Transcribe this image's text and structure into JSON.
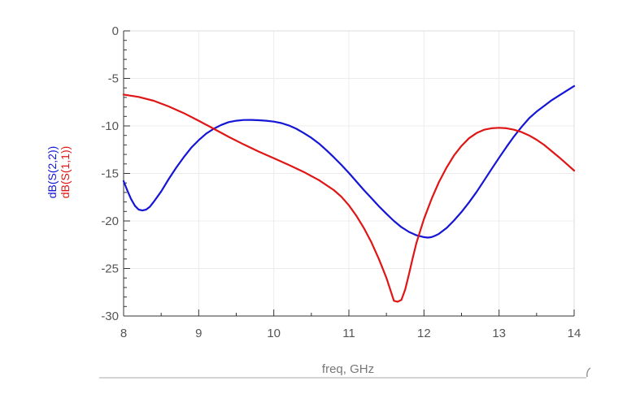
{
  "chart_data": {
    "type": "line",
    "title": "",
    "xlabel": "freq, GHz",
    "ylabel": "",
    "xlim": [
      8,
      14
    ],
    "ylim": [
      -30,
      0
    ],
    "x_ticks": [
      8,
      9,
      10,
      11,
      12,
      13,
      14
    ],
    "x_tick_labels": [
      "8",
      "9",
      "10",
      "11",
      "12",
      "13",
      "14"
    ],
    "y_ticks": [
      0,
      -5,
      -10,
      -15,
      -20,
      -25,
      -30
    ],
    "y_tick_labels": [
      "0",
      "-5",
      "-10",
      "-15",
      "-20",
      "-25",
      "-30"
    ],
    "x_minor_step": 0.5,
    "y_minor_step": 1,
    "grid": true,
    "legend": "vertical labels left of y-axis",
    "series": [
      {
        "name": "dB(S(2,2))",
        "color": "#1515d6",
        "x": [
          8.0,
          8.05,
          8.1,
          8.15,
          8.2,
          8.25,
          8.3,
          8.35,
          8.4,
          8.5,
          8.6,
          8.7,
          8.8,
          8.9,
          9.0,
          9.1,
          9.2,
          9.3,
          9.4,
          9.5,
          9.6,
          9.7,
          9.8,
          9.9,
          10.0,
          10.1,
          10.2,
          10.3,
          10.4,
          10.5,
          10.6,
          10.7,
          10.8,
          10.9,
          11.0,
          11.1,
          11.2,
          11.3,
          11.4,
          11.5,
          11.6,
          11.7,
          11.8,
          11.9,
          12.0,
          12.05,
          12.1,
          12.15,
          12.2,
          12.3,
          12.4,
          12.5,
          12.6,
          12.7,
          12.8,
          12.9,
          13.0,
          13.1,
          13.2,
          13.3,
          13.4,
          13.5,
          13.6,
          13.7,
          13.8,
          13.9,
          14.0
        ],
        "y": [
          -15.8,
          -16.8,
          -17.7,
          -18.4,
          -18.8,
          -18.9,
          -18.8,
          -18.5,
          -18.0,
          -16.9,
          -15.6,
          -14.4,
          -13.3,
          -12.3,
          -11.5,
          -10.8,
          -10.3,
          -9.9,
          -9.6,
          -9.45,
          -9.38,
          -9.37,
          -9.4,
          -9.45,
          -9.55,
          -9.7,
          -9.95,
          -10.3,
          -10.75,
          -11.25,
          -11.85,
          -12.55,
          -13.3,
          -14.1,
          -14.95,
          -15.85,
          -16.75,
          -17.6,
          -18.45,
          -19.25,
          -20.0,
          -20.65,
          -21.15,
          -21.5,
          -21.7,
          -21.75,
          -21.7,
          -21.55,
          -21.35,
          -20.75,
          -19.95,
          -19.05,
          -18.05,
          -16.95,
          -15.75,
          -14.55,
          -13.35,
          -12.2,
          -11.1,
          -10.1,
          -9.2,
          -8.5,
          -7.9,
          -7.3,
          -6.8,
          -6.3,
          -5.8
        ]
      },
      {
        "name": "dB(S(1,1))",
        "color": "#e01515",
        "x": [
          8.0,
          8.2,
          8.4,
          8.6,
          8.8,
          9.0,
          9.2,
          9.4,
          9.6,
          9.8,
          10.0,
          10.2,
          10.4,
          10.6,
          10.8,
          10.9,
          11.0,
          11.1,
          11.2,
          11.3,
          11.4,
          11.5,
          11.55,
          11.6,
          11.65,
          11.7,
          11.75,
          11.8,
          11.85,
          11.9,
          12.0,
          12.1,
          12.2,
          12.3,
          12.4,
          12.5,
          12.6,
          12.7,
          12.8,
          12.9,
          13.0,
          13.1,
          13.2,
          13.3,
          13.4,
          13.5,
          13.6,
          13.7,
          13.8,
          13.9,
          14.0
        ],
        "y": [
          -6.7,
          -6.95,
          -7.35,
          -7.95,
          -8.65,
          -9.45,
          -10.3,
          -11.15,
          -11.95,
          -12.7,
          -13.4,
          -14.1,
          -14.85,
          -15.7,
          -16.75,
          -17.45,
          -18.35,
          -19.45,
          -20.75,
          -22.25,
          -24.0,
          -26.0,
          -27.2,
          -28.4,
          -28.5,
          -28.3,
          -27.2,
          -25.6,
          -23.9,
          -22.3,
          -19.8,
          -17.7,
          -15.9,
          -14.4,
          -13.1,
          -12.1,
          -11.3,
          -10.75,
          -10.4,
          -10.25,
          -10.2,
          -10.25,
          -10.4,
          -10.65,
          -11.0,
          -11.45,
          -12.0,
          -12.65,
          -13.3,
          -14.0,
          -14.7
        ]
      }
    ]
  }
}
